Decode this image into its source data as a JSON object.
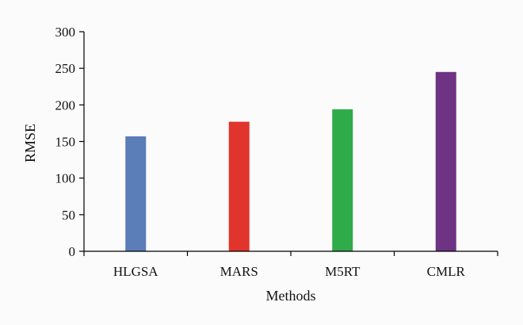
{
  "chart_data": {
    "type": "bar",
    "title": "",
    "xlabel": "Methods",
    "ylabel": "RMSE",
    "categories": [
      "HLGSA",
      "MARS",
      "M5RT",
      "CMLR"
    ],
    "values": [
      157,
      177,
      194,
      245
    ],
    "colors": [
      "#5b7db8",
      "#e0342c",
      "#2fab4a",
      "#6f3384"
    ],
    "ylim": [
      0,
      300
    ],
    "yticks": [
      0,
      50,
      100,
      150,
      200,
      250,
      300
    ],
    "grid": false,
    "legend": "none"
  }
}
